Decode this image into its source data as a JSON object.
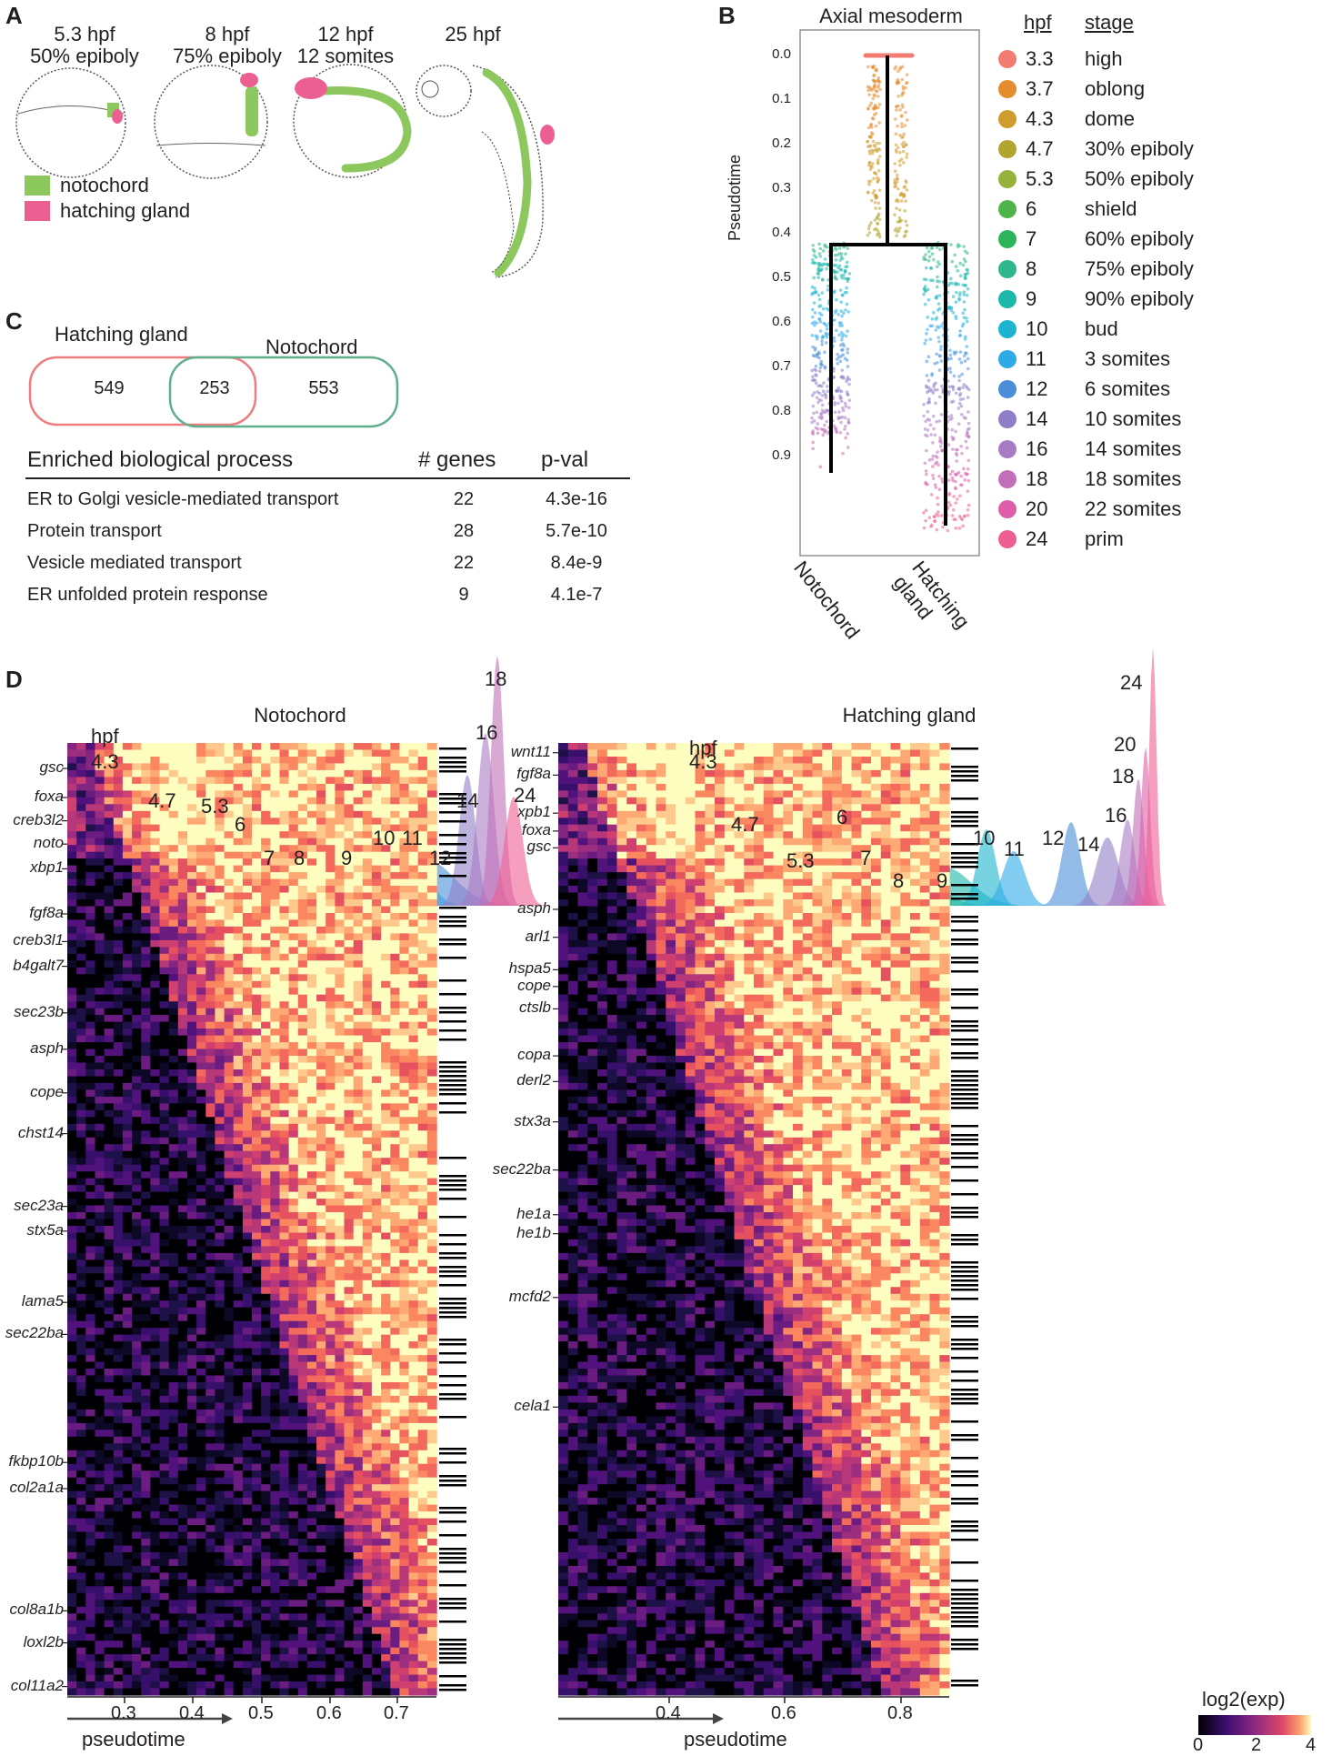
{
  "panel_labels": {
    "a": "A",
    "b": "B",
    "c": "C",
    "d": "D"
  },
  "panel_a": {
    "embryos": [
      {
        "line1": "5.3 hpf",
        "line2": "50% epiboly"
      },
      {
        "line1": "8 hpf",
        "line2": "75% epiboly"
      },
      {
        "line1": "12 hpf",
        "line2": "12 somites"
      },
      {
        "line1": "25 hpf",
        "line2": ""
      }
    ],
    "legend": [
      {
        "label": "notochord",
        "color": "#8dc85f"
      },
      {
        "label": "hatching gland",
        "color": "#ec5f93"
      }
    ]
  },
  "panel_b": {
    "title": "Axial mesoderm",
    "ylabel": "Pseudotime",
    "yticks": [
      "0.0",
      "0.1",
      "0.2",
      "0.3",
      "0.4",
      "0.5",
      "0.6",
      "0.7",
      "0.8",
      "0.9"
    ],
    "branch_labels": [
      "Notochord",
      "Hatching gland"
    ],
    "legend_header": {
      "hpf": "hpf",
      "stage": "stage"
    },
    "legend": [
      {
        "hpf": "3.3",
        "stage": "high",
        "color": "#f27b72"
      },
      {
        "hpf": "3.7",
        "stage": "oblong",
        "color": "#e48d2e"
      },
      {
        "hpf": "4.3",
        "stage": "dome",
        "color": "#cf9d2d"
      },
      {
        "hpf": "4.7",
        "stage": "30% epiboly",
        "color": "#b1a42f"
      },
      {
        "hpf": "5.3",
        "stage": "50% epiboly",
        "color": "#97b23a"
      },
      {
        "hpf": "6",
        "stage": "shield",
        "color": "#4eb54d"
      },
      {
        "hpf": "7",
        "stage": "60% epiboly",
        "color": "#2db45a"
      },
      {
        "hpf": "8",
        "stage": "75% epiboly",
        "color": "#2fb68b"
      },
      {
        "hpf": "9",
        "stage": "90% epiboly",
        "color": "#1cb8aa"
      },
      {
        "hpf": "10",
        "stage": "bud",
        "color": "#1db4cf"
      },
      {
        "hpf": "11",
        "stage": "3 somites",
        "color": "#2eaae7"
      },
      {
        "hpf": "12",
        "stage": "6 somites",
        "color": "#4b8ed8"
      },
      {
        "hpf": "14",
        "stage": "10 somites",
        "color": "#8f7ec7"
      },
      {
        "hpf": "16",
        "stage": "14 somites",
        "color": "#a87cc4"
      },
      {
        "hpf": "18",
        "stage": "18 somites",
        "color": "#c06fb8"
      },
      {
        "hpf": "20",
        "stage": "22 somites",
        "color": "#dd5fa9"
      },
      {
        "hpf": "24",
        "stage": "prim",
        "color": "#ee5e92"
      }
    ]
  },
  "panel_c": {
    "venn": {
      "left_label": "Hatching gland",
      "right_label": "Notochord",
      "left_only": "549",
      "overlap": "253",
      "right_only": "553",
      "left_color": "#ef7b7e",
      "right_color": "#5fae8c"
    },
    "table": {
      "headers": [
        "Enriched biological process",
        "# genes",
        "p-val"
      ],
      "rows": [
        [
          "ER to Golgi vesicle-mediated transport",
          "22",
          "4.3e-16"
        ],
        [
          "Protein transport",
          "28",
          "5.7e-10"
        ],
        [
          "Vesicle mediated transport",
          "22",
          "8.4e-9"
        ],
        [
          "ER unfolded protein response",
          "9",
          "4.1e-7"
        ]
      ]
    }
  },
  "panel_d": {
    "notochord": {
      "title": "Notochord",
      "hpf_word": "hpf",
      "peak_labels": [
        "4.3",
        "4.7",
        "5.3",
        "6",
        "7",
        "8",
        "9",
        "10",
        "11",
        "12",
        "14",
        "16",
        "18",
        "24"
      ],
      "genes": [
        "gsc",
        "foxa",
        "creb3l2",
        "noto",
        "xbp1",
        "fgf8a",
        "creb3l1",
        "b4galt7",
        "sec23b",
        "asph",
        "cope",
        "chst14",
        "sec23a",
        "stx5a",
        "lama5",
        "sec22ba",
        "fkbp10b",
        "col2a1a",
        "col8a1b",
        "loxl2b",
        "col11a2"
      ],
      "xticks": [
        "0.3",
        "0.4",
        "0.5",
        "0.6",
        "0.7"
      ],
      "xlabel": "pseudotime"
    },
    "hatching": {
      "title": "Hatching gland",
      "hpf_word": "hpf",
      "peak_labels": [
        "4.3",
        "4.7",
        "5.3",
        "6",
        "7",
        "8",
        "9",
        "10",
        "11",
        "12",
        "14",
        "16",
        "18",
        "20",
        "24"
      ],
      "genes": [
        "wnt11",
        "fgf8a",
        "xpb1",
        "foxa",
        "gsc",
        "asph",
        "arl1",
        "hspa5",
        "cope",
        "ctslb",
        "copa",
        "derl2",
        "stx3a",
        "sec22ba",
        "he1a",
        "he1b",
        "mcfd2",
        "cela1"
      ],
      "xticks": [
        "0.4",
        "0.6",
        "0.8"
      ],
      "xlabel": "pseudotime"
    },
    "colorbar": {
      "title": "log2(exp)",
      "ticks": [
        "0",
        "2",
        "4"
      ]
    }
  }
}
